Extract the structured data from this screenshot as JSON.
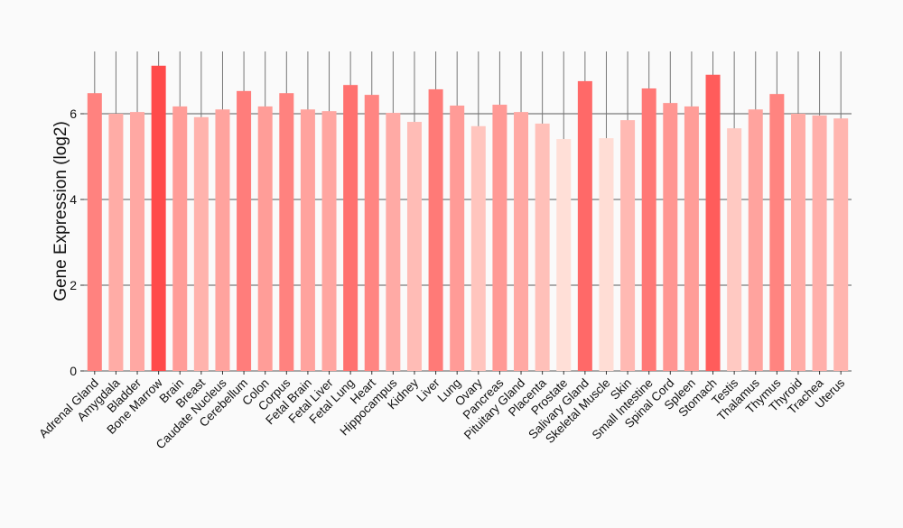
{
  "chart_data": {
    "type": "bar",
    "title": "",
    "xlabel": "",
    "ylabel": "Gene Expression (log2)",
    "ylim": [
      0,
      7.45
    ],
    "yticks": [
      0,
      2,
      4,
      6
    ],
    "grid": true,
    "categories": [
      "Adrenal Gland",
      "Amygdala",
      "Bladder",
      "Bone Marrow",
      "Brain",
      "Breast",
      "Caudate Nucleus",
      "Cerebellum",
      "Colon",
      "Corpus",
      "Fetal Brain",
      "Fetal Liver",
      "Fetal Lung",
      "Heart",
      "Hippocampus",
      "Kidney",
      "Liver",
      "Lung",
      "Ovary",
      "Pancreas",
      "Pituitary Gland",
      "Placenta",
      "Prostate",
      "Salivary Gland",
      "Skeletal Muscle",
      "Skin",
      "Small Intestine",
      "Spinal Cord",
      "Spleen",
      "Stomach",
      "Testis",
      "Thalamus",
      "Thymus",
      "Thyroid",
      "Trachea",
      "Uterus"
    ],
    "values": [
      6.48,
      6.0,
      6.04,
      7.12,
      6.17,
      5.92,
      6.1,
      6.53,
      6.17,
      6.48,
      6.1,
      6.06,
      6.67,
      6.44,
      6.02,
      5.81,
      6.57,
      6.19,
      5.71,
      6.21,
      6.04,
      5.77,
      5.41,
      6.76,
      5.43,
      5.85,
      6.59,
      6.25,
      6.17,
      6.91,
      5.66,
      6.1,
      6.46,
      6.0,
      5.96,
      5.89
    ],
    "color_low": "#ffdfd7",
    "color_high": "#ff4a4a"
  }
}
